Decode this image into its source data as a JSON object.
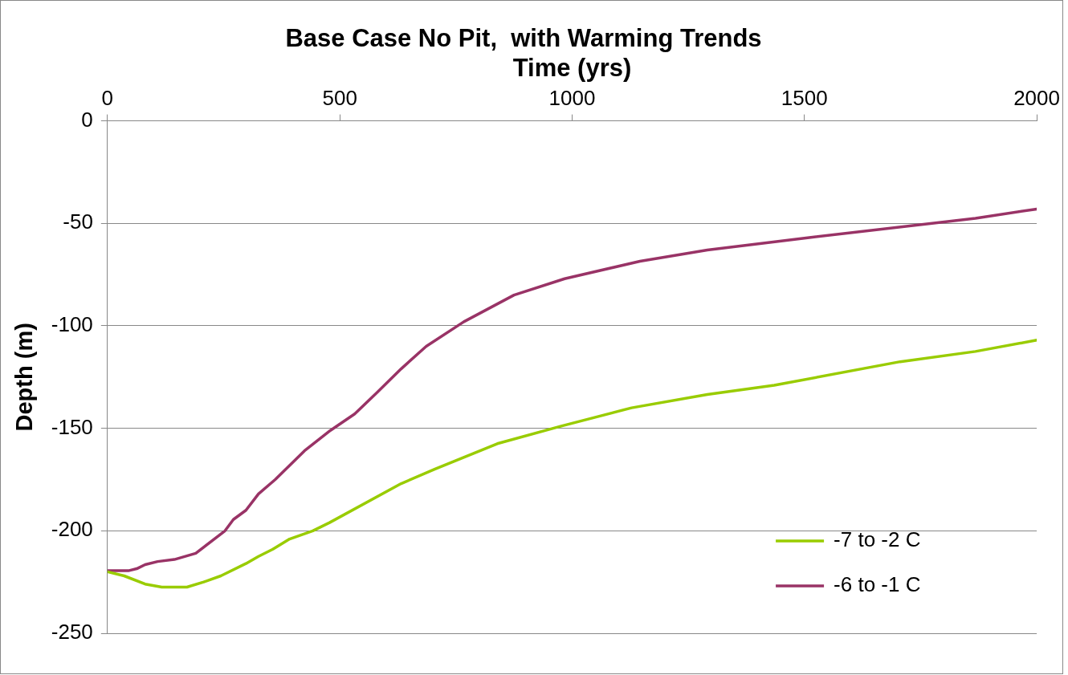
{
  "chart_data": {
    "type": "line",
    "title": "Base Case No Pit,  with Warming Trends",
    "xlabel": "Time (yrs)",
    "ylabel": "Depth (m)",
    "xlim": [
      0,
      2000
    ],
    "xticks": [
      0,
      500,
      1000,
      1500,
      2000
    ],
    "ylim": [
      -250,
      0
    ],
    "yticks": [
      -250,
      -200,
      -150,
      -100,
      -50,
      0
    ],
    "grid": "y",
    "legend": "bottom right",
    "marker": "none",
    "line_style": "solid",
    "series": [
      {
        "name": "-7 to -2 C",
        "color": "#99cc00",
        "x": [
          0,
          36,
          81,
          117,
          171,
          207,
          244,
          298,
          325,
          356,
          392,
          442,
          478,
          632,
          704,
          839,
          975,
          1128,
          1291,
          1435,
          1706,
          1868,
          2000
        ],
        "values": [
          -220,
          -222,
          -226,
          -227.5,
          -227.5,
          -225,
          -222,
          -216,
          -212.5,
          -209,
          -204,
          -200,
          -196,
          -177,
          -170,
          -157.5,
          -149,
          -140,
          -133.5,
          -129,
          -117.5,
          -112.5,
          -107
        ]
      },
      {
        "name": "-6 to -1 C",
        "color": "#993366",
        "x": [
          0,
          45,
          63,
          81,
          108,
          144,
          190,
          253,
          271,
          298,
          325,
          361,
          424,
          480,
          532,
          578,
          632,
          686,
          767,
          875,
          984,
          1146,
          1291,
          1507,
          1868,
          2000
        ],
        "values": [
          -219.5,
          -219.5,
          -218.5,
          -216.5,
          -215,
          -214,
          -211,
          -200,
          -194.5,
          -190,
          -182,
          -175,
          -161,
          -151,
          -143,
          -133,
          -121,
          -110,
          -98,
          -85,
          -77,
          -68.5,
          -63,
          -57,
          -47.5,
          -43
        ]
      }
    ]
  }
}
